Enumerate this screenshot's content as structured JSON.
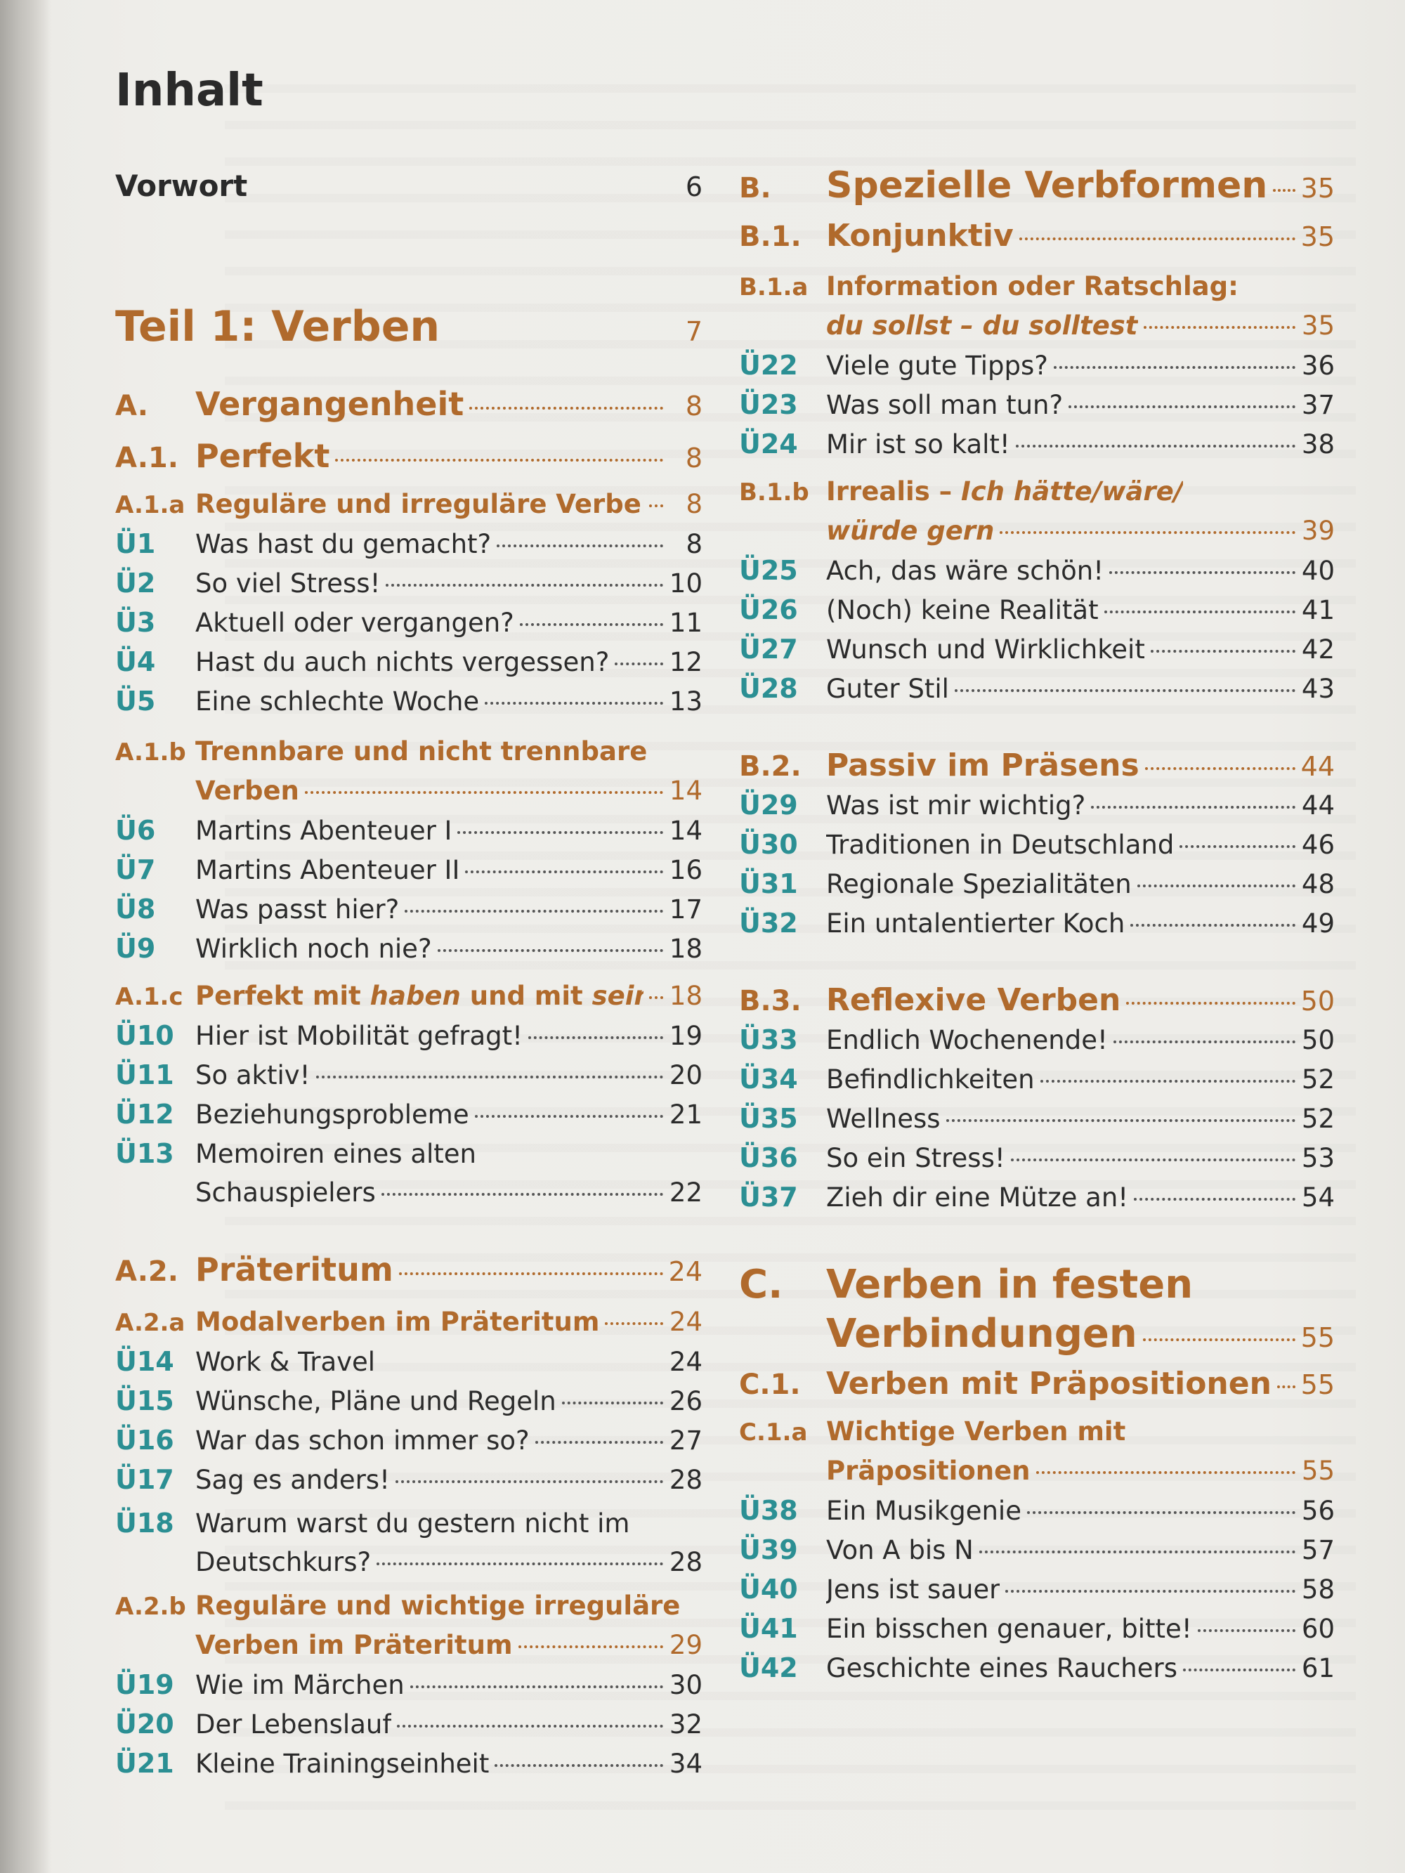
{
  "heading": "Inhalt",
  "left": {
    "vorwort": {
      "title": "Vorwort",
      "page": "6"
    },
    "teil": {
      "title": "Teil 1: Verben",
      "page": "7"
    },
    "A": {
      "code": "A.",
      "title": "Vergangenheit",
      "page": "8"
    },
    "A1": {
      "code": "A.1.",
      "title": "Perfekt",
      "page": "8"
    },
    "A1a": {
      "code": "A.1.a",
      "title": "Reguläre und irreguläre Verben",
      "page": "8"
    },
    "u1": {
      "code": "Ü1",
      "title": "Was hast du gemacht?",
      "page": "8"
    },
    "u2": {
      "code": "Ü2",
      "title": "So viel Stress!",
      "page": "10"
    },
    "u3": {
      "code": "Ü3",
      "title": "Aktuell oder vergangen?",
      "page": "11"
    },
    "u4": {
      "code": "Ü4",
      "title": "Hast du auch nichts vergessen?",
      "page": "12"
    },
    "u5": {
      "code": "Ü5",
      "title": "Eine schlechte Woche",
      "page": "13"
    },
    "A1b": {
      "code": "A.1.b",
      "title1": "Trennbare und nicht trennbare",
      "title2": "Verben",
      "page": "14"
    },
    "u6": {
      "code": "Ü6",
      "title": "Martins Abenteuer I",
      "page": "14"
    },
    "u7": {
      "code": "Ü7",
      "title": "Martins Abenteuer II",
      "page": "16"
    },
    "u8": {
      "code": "Ü8",
      "title": "Was passt hier?",
      "page": "17"
    },
    "u9": {
      "code": "Ü9",
      "title": "Wirklich noch nie?",
      "page": "18"
    },
    "A1c": {
      "code": "A.1.c",
      "t1": "Perfekt mit ",
      "t2": "haben",
      "t3": " und mit ",
      "t4": "sein",
      "page": "18"
    },
    "u10": {
      "code": "Ü10",
      "title": "Hier ist Mobilität gefragt!",
      "page": "19"
    },
    "u11": {
      "code": "Ü11",
      "title": "So aktiv!",
      "page": "20"
    },
    "u12": {
      "code": "Ü12",
      "title": "Beziehungsprobleme",
      "page": "21"
    },
    "u13": {
      "code": "Ü13",
      "title1": "Memoiren eines alten",
      "title2": "Schauspielers",
      "page": "22"
    },
    "A2": {
      "code": "A.2.",
      "title": "Präteritum",
      "page": "24"
    },
    "A2a": {
      "code": "A.2.a",
      "title": "Modalverben im Präteritum",
      "page": "24"
    },
    "u14": {
      "code": "Ü14",
      "title": "Work & Travel",
      "page": "24"
    },
    "u15": {
      "code": "Ü15",
      "title": "Wünsche, Pläne und Regeln",
      "page": "26"
    },
    "u16": {
      "code": "Ü16",
      "title": "War das schon immer so?",
      "page": "27"
    },
    "u17": {
      "code": "Ü17",
      "title": "Sag es anders!",
      "page": "28"
    },
    "u18": {
      "code": "Ü18",
      "title1": "Warum warst du gestern nicht im",
      "title2": "Deutschkurs?",
      "page": "28"
    },
    "A2b": {
      "code": "A.2.b",
      "title1": "Reguläre und wichtige irreguläre",
      "title2": "Verben im Präteritum",
      "page": "29"
    },
    "u19": {
      "code": "Ü19",
      "title": "Wie im Märchen",
      "page": "30"
    },
    "u20": {
      "code": "Ü20",
      "title": "Der Lebenslauf",
      "page": "32"
    },
    "u21": {
      "code": "Ü21",
      "title": "Kleine Trainingseinheit",
      "page": "34"
    }
  },
  "right": {
    "B": {
      "code": "B.",
      "title": "Spezielle Verbformen",
      "page": "35"
    },
    "B1": {
      "code": "B.1.",
      "title": "Konjunktiv",
      "page": "35"
    },
    "B1a": {
      "code": "B.1.a",
      "title1": "Information oder Ratschlag:",
      "title2": "du sollst – du solltest",
      "page": "35"
    },
    "u22": {
      "code": "Ü22",
      "title": "Viele gute Tipps?",
      "page": "36"
    },
    "u23": {
      "code": "Ü23",
      "title": "Was soll man tun?",
      "page": "37"
    },
    "u24": {
      "code": "Ü24",
      "title": "Mir ist so kalt!",
      "page": "38"
    },
    "B1b": {
      "code": "B.1.b",
      "t1": "Irrealis – ",
      "t2": "Ich hätte/wäre/",
      "title2": "würde gern",
      "page": "39"
    },
    "u25": {
      "code": "Ü25",
      "title": "Ach, das wäre schön!",
      "page": "40"
    },
    "u26": {
      "code": "Ü26",
      "title": "(Noch) keine Realität",
      "page": "41"
    },
    "u27": {
      "code": "Ü27",
      "title": "Wunsch und Wirklichkeit",
      "page": "42"
    },
    "u28": {
      "code": "Ü28",
      "title": "Guter Stil",
      "page": "43"
    },
    "B2": {
      "code": "B.2.",
      "title": "Passiv im Präsens",
      "page": "44"
    },
    "u29": {
      "code": "Ü29",
      "title": "Was ist mir wichtig?",
      "page": "44"
    },
    "u30": {
      "code": "Ü30",
      "title": "Traditionen in Deutschland",
      "page": "46"
    },
    "u31": {
      "code": "Ü31",
      "title": "Regionale Spezialitäten",
      "page": "48"
    },
    "u32": {
      "code": "Ü32",
      "title": "Ein untalentierter Koch",
      "page": "49"
    },
    "B3": {
      "code": "B.3.",
      "title": "Reflexive Verben",
      "page": "50"
    },
    "u33": {
      "code": "Ü33",
      "title": "Endlich Wochenende!",
      "page": "50"
    },
    "u34": {
      "code": "Ü34",
      "title": "Befindlichkeiten",
      "page": "52"
    },
    "u35": {
      "code": "Ü35",
      "title": "Wellness",
      "page": "52"
    },
    "u36": {
      "code": "Ü36",
      "title": "So ein Stress!",
      "page": "53"
    },
    "u37": {
      "code": "Ü37",
      "title": "Zieh dir eine Mütze an!",
      "page": "54"
    },
    "C": {
      "code": "C.",
      "title1": "Verben in festen",
      "title2": "Verbindungen",
      "page": "55"
    },
    "C1": {
      "code": "C.1.",
      "title": "Verben mit Präpositionen",
      "page": "55"
    },
    "C1a": {
      "code": "C.1.a",
      "title1": "Wichtige Verben mit",
      "title2": "Präpositionen",
      "page": "55"
    },
    "u38": {
      "code": "Ü38",
      "title": "Ein Musikgenie",
      "page": "56"
    },
    "u39": {
      "code": "Ü39",
      "title": "Von A bis N",
      "page": "57"
    },
    "u40": {
      "code": "Ü40",
      "title": "Jens ist sauer",
      "page": "58"
    },
    "u41": {
      "code": "Ü41",
      "title": "Ein bisschen genauer, bitte!",
      "page": "60"
    },
    "u42": {
      "code": "Ü42",
      "title": "Geschichte eines Rauchers",
      "page": "61"
    }
  },
  "colors": {
    "section": "#b06a2c",
    "exercise": "#2b8f93",
    "text": "#2b2b2b"
  }
}
